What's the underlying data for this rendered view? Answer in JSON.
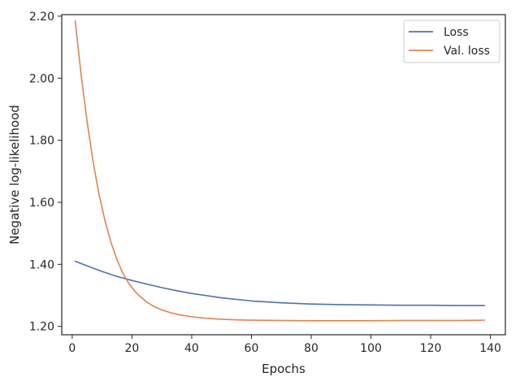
{
  "chart_data": {
    "type": "line",
    "xlabel": "Epochs",
    "ylabel": "Negative log-likelihood",
    "xlim": [
      -3.5,
      145
    ],
    "ylim": [
      1.173,
      2.205
    ],
    "xticks": [
      0,
      20,
      40,
      60,
      80,
      100,
      120,
      140
    ],
    "xtick_labels": [
      "0",
      "20",
      "40",
      "60",
      "80",
      "100",
      "120",
      "140"
    ],
    "yticks": [
      1.2,
      1.4,
      1.6,
      1.8,
      2.0,
      2.2
    ],
    "ytick_labels": [
      "1.20",
      "1.40",
      "1.60",
      "1.80",
      "2.00",
      "2.20"
    ],
    "grid": false,
    "legend_position": "top-right",
    "series": [
      {
        "name": "Loss",
        "color": "#4c72b0",
        "x": [
          1,
          5,
          10,
          15,
          20,
          25,
          30,
          35,
          40,
          50,
          60,
          70,
          80,
          90,
          100,
          110,
          120,
          130,
          138
        ],
        "y": [
          1.41,
          1.395,
          1.377,
          1.361,
          1.348,
          1.336,
          1.325,
          1.315,
          1.306,
          1.292,
          1.282,
          1.276,
          1.272,
          1.27,
          1.269,
          1.268,
          1.268,
          1.267,
          1.267
        ]
      },
      {
        "name": "Val. loss",
        "color": "#dd8452",
        "x": [
          1,
          3,
          5,
          7,
          9,
          11,
          13,
          15,
          17,
          19,
          21,
          23,
          25,
          27,
          30,
          33,
          36,
          40,
          45,
          50,
          55,
          60,
          70,
          80,
          90,
          100,
          110,
          120,
          130,
          138
        ],
        "y": [
          2.185,
          2.01,
          1.86,
          1.73,
          1.625,
          1.54,
          1.47,
          1.415,
          1.37,
          1.338,
          1.313,
          1.294,
          1.278,
          1.266,
          1.253,
          1.244,
          1.237,
          1.231,
          1.226,
          1.223,
          1.221,
          1.22,
          1.219,
          1.218,
          1.218,
          1.218,
          1.219,
          1.219,
          1.219,
          1.22
        ]
      }
    ]
  }
}
